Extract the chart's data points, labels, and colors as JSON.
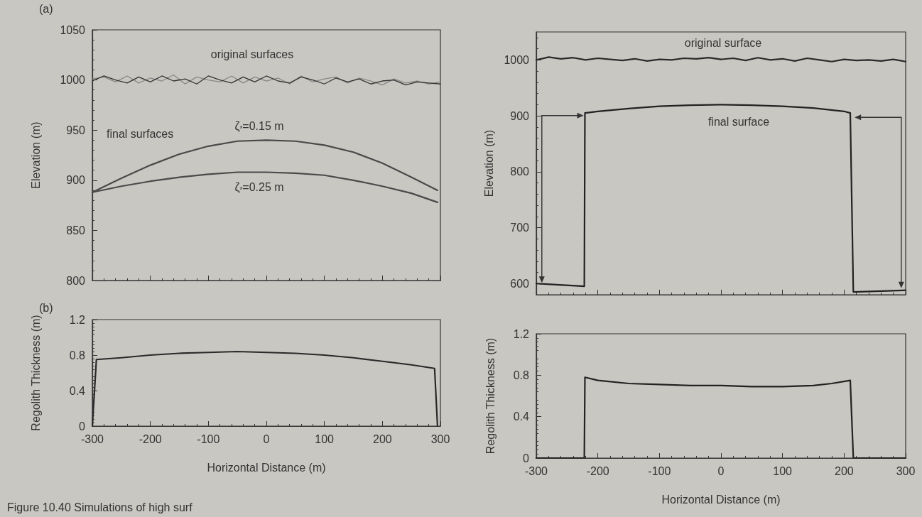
{
  "chart_data": [
    {
      "type": "line",
      "ylabel": "Elevation (m)",
      "xlim": [
        -300,
        300
      ],
      "xticks": [
        -300,
        -200,
        -100,
        0,
        100,
        200,
        300
      ],
      "ylim": [
        800,
        1050
      ],
      "yticks": [
        800,
        850,
        900,
        950,
        1000,
        1050
      ],
      "tick_labels": "y",
      "grid": false,
      "marker": "none",
      "line_style": "solid",
      "annotations": [
        "(a)",
        "original surfaces",
        "final surfaces",
        "ζ$_{*}$=0.15 m",
        "ζ$_{*}$=0.25 m"
      ],
      "x": [
        -300,
        -280,
        -260,
        -240,
        -220,
        -200,
        -180,
        -160,
        -140,
        -120,
        -100,
        -80,
        -60,
        -40,
        -20,
        0,
        20,
        40,
        60,
        80,
        100,
        120,
        140,
        160,
        180,
        200,
        220,
        240,
        260,
        280,
        300
      ],
      "series": [
        {
          "color": "#888884",
          "values": [
            1001,
            1003,
            998,
            1004,
            997,
            1002,
            999,
            1005,
            996,
            1003,
            1000,
            998,
            1004,
            997,
            1003,
            999,
            1002,
            996,
            1004,
            998,
            1001,
            1003,
            997,
            1002,
            999,
            995,
            1001,
            997,
            999,
            996,
            998
          ]
        },
        {
          "color": "#333333",
          "values": [
            999,
            1004,
            1000,
            997,
            1003,
            998,
            1004,
            999,
            1001,
            996,
            1004,
            1000,
            997,
            1003,
            998,
            1004,
            999,
            997,
            1003,
            1000,
            996,
            1002,
            998,
            1001,
            996,
            999,
            1000,
            995,
            998,
            997,
            996
          ]
        },
        {
          "color": "#4a4a4a",
          "x": [
            -300,
            -250,
            -200,
            -150,
            -100,
            -50,
            0,
            50,
            100,
            150,
            200,
            250,
            295
          ],
          "values": [
            888,
            902,
            915,
            926,
            934,
            939,
            940,
            939,
            935,
            928,
            917,
            903,
            890
          ]
        },
        {
          "color": "#4a4a4a",
          "x": [
            -300,
            -250,
            -200,
            -150,
            -100,
            -50,
            0,
            50,
            100,
            150,
            200,
            250,
            295
          ],
          "values": [
            888,
            894,
            899,
            903,
            906,
            908,
            908,
            907,
            905,
            900,
            894,
            887,
            878
          ]
        }
      ]
    },
    {
      "type": "line",
      "xlabel": "Horizontal Distance (m)",
      "ylabel": "Regolith Thickness (m)",
      "xlim": [
        -300,
        300
      ],
      "xticks": [
        -300,
        -200,
        -100,
        0,
        100,
        200,
        300
      ],
      "ylim": [
        0,
        1.2
      ],
      "yticks": [
        0,
        0.4,
        0.8,
        1.2
      ],
      "grid": false,
      "marker": "none",
      "line_style": "solid",
      "annotations": [
        "(b)",
        "Figure 10.40 Simulations of high surf"
      ],
      "x": [
        -300,
        -293,
        -250,
        -200,
        -150,
        -100,
        -50,
        0,
        50,
        100,
        150,
        200,
        250,
        290,
        295
      ],
      "series": [
        {
          "color": "#2a2a2a",
          "values": [
            0,
            0.75,
            0.77,
            0.8,
            0.82,
            0.83,
            0.84,
            0.83,
            0.82,
            0.8,
            0.77,
            0.73,
            0.69,
            0.65,
            0
          ]
        }
      ]
    },
    {
      "type": "line",
      "ylabel": "Elevation (m)",
      "xlim": [
        -300,
        300
      ],
      "xticks": [
        -300,
        -200,
        -100,
        0,
        100,
        200,
        300
      ],
      "ylim": [
        580,
        1050
      ],
      "yticks": [
        600,
        700,
        800,
        900,
        1000
      ],
      "tick_labels": "y",
      "grid": false,
      "marker": "none",
      "line_style": "solid",
      "annotations": [
        "original surface",
        "final surface"
      ],
      "series": [
        {
          "color": "#2a2a2a",
          "x": [
            -300,
            -280,
            -260,
            -240,
            -220,
            -200,
            -180,
            -160,
            -140,
            -120,
            -100,
            -80,
            -60,
            -40,
            -20,
            0,
            20,
            40,
            60,
            80,
            100,
            120,
            140,
            160,
            180,
            200,
            220,
            240,
            260,
            280,
            300
          ],
          "values": [
            1000,
            1005,
            1002,
            1004,
            1000,
            1003,
            1001,
            999,
            1002,
            998,
            1001,
            1000,
            1003,
            1002,
            1004,
            1001,
            1003,
            999,
            1004,
            1000,
            1002,
            998,
            1003,
            1000,
            997,
            1001,
            999,
            1000,
            998,
            1001,
            997
          ]
        },
        {
          "color": "#222222",
          "x": [
            -300,
            -222,
            -221,
            -200,
            -150,
            -100,
            -50,
            0,
            50,
            100,
            150,
            200,
            210,
            215,
            300
          ],
          "values": [
            600,
            595,
            905,
            908,
            913,
            917,
            919,
            920,
            919,
            917,
            914,
            908,
            905,
            585,
            588
          ]
        }
      ]
    },
    {
      "type": "line",
      "xlabel": "Horizontal Distance (m)",
      "ylabel": "Regolith Thickness (m)",
      "xlim": [
        -300,
        300
      ],
      "xticks": [
        -300,
        -200,
        -100,
        0,
        100,
        200,
        300
      ],
      "ylim": [
        0,
        1.2
      ],
      "yticks": [
        0,
        0.4,
        0.8,
        1.2
      ],
      "grid": false,
      "marker": "none",
      "line_style": "solid",
      "x": [
        -300,
        -222,
        -221,
        -200,
        -150,
        -100,
        -50,
        0,
        50,
        100,
        150,
        180,
        210,
        215,
        300
      ],
      "series": [
        {
          "color": "#222222",
          "values": [
            0,
            0,
            0.78,
            0.75,
            0.72,
            0.71,
            0.7,
            0.7,
            0.69,
            0.69,
            0.7,
            0.72,
            0.75,
            0,
            0
          ]
        }
      ]
    }
  ]
}
